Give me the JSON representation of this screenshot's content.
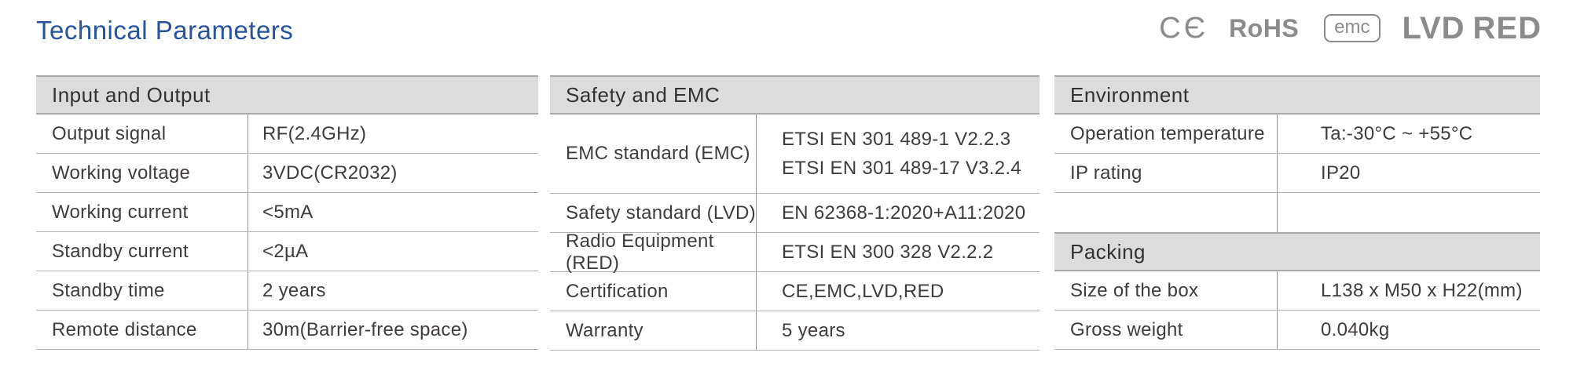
{
  "page": {
    "title": "Technical Parameters"
  },
  "certifications": {
    "ce": "CЄ",
    "rohs": "RoHS",
    "emc": "emc",
    "lvd": "LVD",
    "red": "RED"
  },
  "tables": {
    "input_output": {
      "header": "Input and Output",
      "rows": [
        {
          "label": "Output signal",
          "value": "RF(2.4GHz)"
        },
        {
          "label": "Working voltage",
          "value": "3VDC(CR2032)"
        },
        {
          "label": "Working current",
          "value": "<5mA"
        },
        {
          "label": "Standby current",
          "value": "<2µA"
        },
        {
          "label": "Standby time",
          "value": "2 years"
        },
        {
          "label": "Remote distance",
          "value": "30m(Barrier-free space)"
        }
      ]
    },
    "safety_emc": {
      "header": "Safety and EMC",
      "rows": [
        {
          "label": "EMC standard (EMC)",
          "value_lines": [
            "ETSI EN 301 489-1 V2.2.3",
            "ETSI EN 301 489-17 V3.2.4"
          ]
        },
        {
          "label": "Safety standard (LVD)",
          "value": "EN 62368-1:2020+A11:2020"
        },
        {
          "label": "Radio Equipment (RED)",
          "value": "ETSI EN 300 328 V2.2.2"
        },
        {
          "label": "Certification",
          "value": "CE,EMC,LVD,RED"
        },
        {
          "label": "Warranty",
          "value": "5 years"
        }
      ]
    },
    "environment": {
      "header": "Environment",
      "rows": [
        {
          "label": "Operation temperature",
          "value": "Ta:-30°C ~ +55°C"
        },
        {
          "label": "IP rating",
          "value": "IP20"
        }
      ]
    },
    "packing": {
      "header": "Packing",
      "rows": [
        {
          "label": "Size of the box",
          "value": "L138 x M50 x H22(mm)"
        },
        {
          "label": "Gross weight",
          "value": "0.040kg"
        }
      ]
    }
  }
}
